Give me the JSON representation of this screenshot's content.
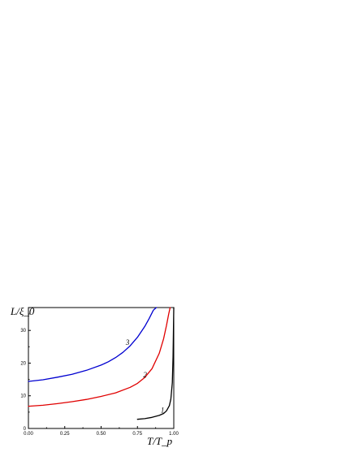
{
  "chart_data": {
    "type": "line",
    "title": "",
    "xlabel": "T/T_p",
    "ylabel": "L/ξ_0",
    "xlim": [
      0,
      1.0
    ],
    "ylim": [
      0,
      37
    ],
    "x_ticks": [
      "0.00",
      "0.25",
      "0.50",
      "0.75",
      "1.00"
    ],
    "y_ticks": [
      "0",
      "10",
      "20",
      "30"
    ],
    "grid": false,
    "series": [
      {
        "name": "1",
        "color": "#000000",
        "x": [
          0.75,
          0.8,
          0.85,
          0.9,
          0.93,
          0.95,
          0.97,
          0.98,
          0.99,
          0.995,
          1.0
        ],
        "y": [
          2.8,
          3.0,
          3.4,
          4.0,
          4.6,
          5.4,
          7.0,
          9.0,
          14.0,
          22.0,
          37.0
        ]
      },
      {
        "name": "2",
        "color": "#e00000",
        "x": [
          0.0,
          0.1,
          0.2,
          0.3,
          0.4,
          0.5,
          0.6,
          0.7,
          0.75,
          0.8,
          0.85,
          0.9,
          0.93,
          0.95,
          0.965,
          0.975
        ],
        "y": [
          6.8,
          7.1,
          7.6,
          8.2,
          8.9,
          9.8,
          10.9,
          12.6,
          13.8,
          15.6,
          18.3,
          23.0,
          27.5,
          31.5,
          35.0,
          37.0
        ]
      },
      {
        "name": "3",
        "color": "#0000d0",
        "x": [
          0.0,
          0.1,
          0.2,
          0.3,
          0.4,
          0.5,
          0.55,
          0.6,
          0.65,
          0.7,
          0.75,
          0.8,
          0.83,
          0.86,
          0.88
        ],
        "y": [
          14.4,
          14.9,
          15.7,
          16.6,
          17.8,
          19.4,
          20.4,
          21.7,
          23.3,
          25.3,
          27.9,
          31.2,
          33.6,
          36.2,
          37.0
        ]
      }
    ],
    "annotations": [
      {
        "text": "1",
        "x": 0.91,
        "y": 4.8
      },
      {
        "text": "2",
        "x": 0.79,
        "y": 15.7
      },
      {
        "text": "3",
        "x": 0.67,
        "y": 25.6
      }
    ]
  }
}
